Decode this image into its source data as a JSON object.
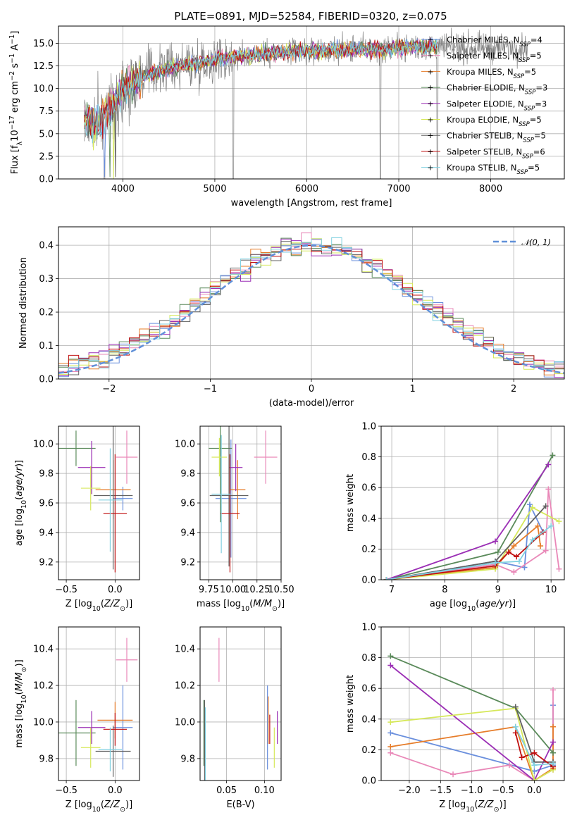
{
  "title": "PLATE=0891, MJD=52584, FIBERID=0320, z=0.075",
  "colors": {
    "chabrier_miles": "#6a8fdd",
    "salpeter_miles": "#e988b8",
    "kroupa_miles": "#e67c29",
    "chabrier_elodie": "#5a8a5a",
    "salpeter_elodie": "#9b2fb5",
    "kroupa_elodie": "#d6e85a",
    "chabrier_stelib": "#606060",
    "salpeter_stelib": "#c01010",
    "kroupa_stelib": "#80d0e0",
    "gaussian": "#6090d8",
    "data": "#808080"
  },
  "legend": {
    "spectrum": [
      "Chabrier MILES, N$SSP=4",
      "Salpeter MILES, N$SSP=5",
      "Kroupa MILES, N$SSP=5",
      "Chabrier ELODIE, N$SSP=3",
      "Salpeter ELODIE, N$SSP=3",
      "Kroupa ELODIE, N$SSP=5",
      "Chabrier STELIB, N$SSP=5",
      "Salpeter STELIB, N$SSP=6",
      "Kroupa STELIB, N$SSP=5"
    ],
    "hist": "𝒩(0, 1)"
  },
  "chart_data": [
    {
      "type": "line",
      "name": "spectrum",
      "xlabel": "wavelength [Angstrom, rest frame]",
      "ylabel": "Flux [f_λ10^−17 erg cm^−2 s^−1 A^−1]",
      "xlim": [
        3300,
        8800
      ],
      "ylim": [
        0,
        16.9
      ],
      "xticks": [
        "4000",
        "5000",
        "6000",
        "7000",
        "8000"
      ],
      "yticks": [
        "0.0",
        "2.5",
        "5.0",
        "7.5",
        "10.0",
        "12.5",
        "15.0"
      ],
      "continuum": {
        "x": [
          3580,
          3700,
          3850,
          4000,
          4200,
          4500,
          4800,
          5000,
          5300,
          5600,
          5900,
          6200,
          6500,
          6800,
          7000,
          7200,
          7400
        ],
        "y": [
          6.5,
          6.0,
          7.5,
          10.0,
          11.2,
          12.3,
          12.8,
          13.2,
          13.6,
          13.9,
          14.1,
          14.2,
          14.3,
          14.4,
          14.5,
          14.6,
          14.7
        ]
      },
      "data_range": [
        3580,
        8400
      ],
      "model_range": [
        3580,
        7420
      ],
      "grid": true
    },
    {
      "type": "bar",
      "name": "residual histogram",
      "xlabel": "(data-model)/error",
      "ylabel": "Normed distribution",
      "xlim": [
        -2.5,
        2.5
      ],
      "ylim": [
        0,
        0.455
      ],
      "xticks": [
        "−2",
        "−1",
        "0",
        "1",
        "2"
      ],
      "yticks": [
        "0.0",
        "0.1",
        "0.2",
        "0.3",
        "0.4"
      ],
      "bin_width": 0.1,
      "gaussian": "N(0,1)",
      "grid": true
    },
    {
      "type": "scatter",
      "name": "age vs Z",
      "xlabel": "Z [log10(Z/Z⊙)]",
      "ylabel": "age  [log10(age/yr)]",
      "xlim": [
        -0.58,
        0.25
      ],
      "ylim": [
        9.08,
        10.12
      ],
      "xticks": [
        "−0.5",
        "0.0"
      ],
      "yticks": [
        "9.2",
        "9.4",
        "9.6",
        "9.8",
        "10.0"
      ],
      "points": [
        {
          "key": "chabrier_miles",
          "x": 0.08,
          "y": 9.63,
          "dx": 0.1,
          "dy": 0.08
        },
        {
          "key": "salpeter_miles",
          "x": 0.12,
          "y": 9.91,
          "dx": 0.11,
          "dy": 0.18
        },
        {
          "key": "kroupa_miles",
          "x": -0.02,
          "y": 9.69,
          "dx": 0.18,
          "dy": 0.2
        },
        {
          "key": "chabrier_elodie",
          "x": -0.4,
          "y": 9.97,
          "dx": 0.2,
          "dy": 0.12
        },
        {
          "key": "salpeter_elodie",
          "x": -0.24,
          "y": 9.84,
          "dx": 0.14,
          "dy": 0.18
        },
        {
          "key": "kroupa_elodie",
          "x": -0.25,
          "y": 9.7,
          "dx": 0.1,
          "dy": 0.15
        },
        {
          "key": "chabrier_stelib",
          "x": -0.02,
          "y": 9.65,
          "dx": 0.2,
          "dy": 0.5
        },
        {
          "key": "salpeter_stelib",
          "x": 0.0,
          "y": 9.53,
          "dx": 0.12,
          "dy": 0.4
        },
        {
          "key": "kroupa_stelib",
          "x": -0.05,
          "y": 9.62,
          "dx": 0.12,
          "dy": 0.35
        }
      ],
      "grid": true
    },
    {
      "type": "scatter",
      "name": "age vs mass",
      "xlabel": "mass [log10(M/M⊙)]",
      "xlim": [
        9.66,
        10.5
      ],
      "ylim": [
        9.08,
        10.12
      ],
      "xticks": [
        "9.75",
        "10.00",
        "10.25",
        "10.50"
      ],
      "yticks": [
        "9.2",
        "9.4",
        "9.6",
        "9.8",
        "10.0"
      ],
      "points": [
        {
          "key": "chabrier_miles",
          "x": 9.98,
          "y": 9.63,
          "dx": 0.16,
          "dy": 0.4
        },
        {
          "key": "salpeter_miles",
          "x": 10.34,
          "y": 9.91,
          "dx": 0.12,
          "dy": 0.18
        },
        {
          "key": "kroupa_miles",
          "x": 10.05,
          "y": 9.69,
          "dx": 0.08,
          "dy": 0.2
        },
        {
          "key": "chabrier_elodie",
          "x": 9.87,
          "y": 9.97,
          "dx": 0.12,
          "dy": 0.5
        },
        {
          "key": "salpeter_elodie",
          "x": 10.03,
          "y": 9.84,
          "dx": 0.07,
          "dy": 0.16
        },
        {
          "key": "kroupa_elodie",
          "x": 9.86,
          "y": 9.91,
          "dx": 0.08,
          "dy": 0.13
        },
        {
          "key": "chabrier_stelib",
          "x": 9.96,
          "y": 9.65,
          "dx": 0.2,
          "dy": 0.48
        },
        {
          "key": "salpeter_stelib",
          "x": 9.97,
          "y": 9.53,
          "dx": 0.1,
          "dy": 0.4
        },
        {
          "key": "kroupa_stelib",
          "x": 9.88,
          "y": 9.66,
          "dx": 0.1,
          "dy": 0.4
        }
      ],
      "grid": true
    },
    {
      "type": "line",
      "name": "mass weight vs age",
      "xlabel": "age  [log10(age/yr)]",
      "ylabel": "mass weight",
      "xlim": [
        6.8,
        10.25
      ],
      "ylim": [
        0,
        1
      ],
      "xticks": [
        "7",
        "8",
        "9",
        "10"
      ],
      "yticks": [
        "0.0",
        "0.2",
        "0.4",
        "0.6",
        "0.8",
        "1.0"
      ],
      "series": [
        {
          "key": "chabrier_miles",
          "x": [
            6.9,
            8.95,
            9.5,
            9.6,
            9.85
          ],
          "y": [
            0.0,
            0.12,
            0.08,
            0.49,
            0.31
          ]
        },
        {
          "key": "salpeter_miles",
          "x": [
            6.9,
            8.95,
            9.3,
            9.9,
            9.95,
            10.15
          ],
          "y": [
            0.0,
            0.1,
            0.05,
            0.19,
            0.59,
            0.07
          ]
        },
        {
          "key": "kroupa_miles",
          "x": [
            6.9,
            8.95,
            9.3,
            9.75,
            9.8
          ],
          "y": [
            0.0,
            0.08,
            0.22,
            0.35,
            0.22
          ]
        },
        {
          "key": "chabrier_elodie",
          "x": [
            6.9,
            9.0,
            10.03
          ],
          "y": [
            0.0,
            0.18,
            0.81
          ]
        },
        {
          "key": "salpeter_elodie",
          "x": [
            6.9,
            8.95,
            9.95
          ],
          "y": [
            0.0,
            0.25,
            0.75
          ]
        },
        {
          "key": "kroupa_elodie",
          "x": [
            6.9,
            8.95,
            9.65,
            10.15
          ],
          "y": [
            0.0,
            0.07,
            0.47,
            0.38
          ]
        },
        {
          "key": "chabrier_stelib",
          "x": [
            6.9,
            8.95,
            9.9
          ],
          "y": [
            0.0,
            0.12,
            0.48
          ]
        },
        {
          "key": "salpeter_stelib",
          "x": [
            6.9,
            8.95,
            9.2,
            9.35,
            9.85
          ],
          "y": [
            0.0,
            0.09,
            0.18,
            0.15,
            0.31
          ]
        },
        {
          "key": "kroupa_stelib",
          "x": [
            6.9,
            8.95,
            9.4,
            9.65,
            10.0
          ],
          "y": [
            0.0,
            0.11,
            0.12,
            0.26,
            0.35
          ]
        }
      ],
      "grid": true
    },
    {
      "type": "scatter",
      "name": "mass vs Z",
      "xlabel": "Z [log10(Z/Z⊙)]",
      "ylabel": "mass [log10(M/M⊙)]",
      "xlim": [
        -0.58,
        0.25
      ],
      "ylim": [
        9.68,
        10.52
      ],
      "xticks": [
        "−0.5",
        "0.0"
      ],
      "yticks": [
        "9.8",
        "10.0",
        "10.2",
        "10.4"
      ],
      "points": [
        {
          "key": "chabrier_miles",
          "x": 0.08,
          "y": 9.97,
          "dx": 0.1,
          "dy": 0.23
        },
        {
          "key": "salpeter_miles",
          "x": 0.12,
          "y": 10.34,
          "dx": 0.11,
          "dy": 0.12
        },
        {
          "key": "kroupa_miles",
          "x": 0.0,
          "y": 10.01,
          "dx": 0.18,
          "dy": 0.1
        },
        {
          "key": "chabrier_elodie",
          "x": -0.4,
          "y": 9.94,
          "dx": 0.2,
          "dy": 0.18
        },
        {
          "key": "salpeter_elodie",
          "x": -0.24,
          "y": 9.97,
          "dx": 0.14,
          "dy": 0.09
        },
        {
          "key": "kroupa_elodie",
          "x": -0.25,
          "y": 9.86,
          "dx": 0.1,
          "dy": 0.11
        },
        {
          "key": "chabrier_stelib",
          "x": -0.02,
          "y": 9.84,
          "dx": 0.18,
          "dy": 0.14
        },
        {
          "key": "salpeter_stelib",
          "x": 0.0,
          "y": 9.96,
          "dx": 0.12,
          "dy": 0.09
        },
        {
          "key": "kroupa_stelib",
          "x": -0.05,
          "y": 9.85,
          "dx": 0.12,
          "dy": 0.12
        }
      ],
      "grid": true
    },
    {
      "type": "scatter",
      "name": "mass vs E(B-V)",
      "xlabel": "E(B-V)",
      "xlim": [
        0.015,
        0.122
      ],
      "ylim": [
        9.68,
        10.52
      ],
      "xticks": [
        "0.05",
        "0.10"
      ],
      "yticks": [
        "9.8",
        "10.0",
        "10.2",
        "10.4"
      ],
      "points": [
        {
          "key": "chabrier_miles",
          "x": 0.104,
          "y": 9.97,
          "dy": 0.23
        },
        {
          "key": "salpeter_miles",
          "x": 0.04,
          "y": 10.34,
          "dy": 0.12
        },
        {
          "key": "kroupa_miles",
          "x": 0.105,
          "y": 10.01,
          "dy": 0.13
        },
        {
          "key": "chabrier_elodie",
          "x": 0.02,
          "y": 9.94,
          "dy": 0.18
        },
        {
          "key": "salpeter_elodie",
          "x": 0.117,
          "y": 9.97,
          "dy": 0.09
        },
        {
          "key": "kroupa_elodie",
          "x": 0.113,
          "y": 9.86,
          "dy": 0.11
        },
        {
          "key": "chabrier_stelib",
          "x": 0.021,
          "y": 9.9,
          "dy": 0.22
        },
        {
          "key": "salpeter_stelib",
          "x": 0.107,
          "y": 9.96,
          "dy": 0.08
        },
        {
          "key": "kroupa_stelib",
          "x": 0.022,
          "y": 9.88,
          "dy": 0.2
        }
      ],
      "grid": true
    },
    {
      "type": "line",
      "name": "mass weight vs Z",
      "xlabel": "Z [log10(Z/Z⊙)]",
      "ylabel": "mass weight",
      "xlim": [
        -2.45,
        0.48
      ],
      "ylim": [
        0,
        1
      ],
      "xticks": [
        "−2.0",
        "−1.5",
        "−1.0",
        "−0.5",
        "0.0"
      ],
      "yticks": [
        "0.0",
        "0.2",
        "0.4",
        "0.6",
        "0.8",
        "1.0"
      ],
      "series": [
        {
          "key": "chabrier_miles",
          "x": [
            -2.3,
            0.0,
            0.3,
            0.3
          ],
          "y": [
            0.31,
            0.06,
            0.1,
            0.49
          ]
        },
        {
          "key": "salpeter_miles",
          "x": [
            -2.3,
            -1.3,
            -0.4,
            0.0,
            0.3,
            0.3
          ],
          "y": [
            0.18,
            0.04,
            0.1,
            0.0,
            0.07,
            0.59
          ]
        },
        {
          "key": "kroupa_miles",
          "x": [
            -2.3,
            -0.3,
            0.0,
            0.3,
            0.3
          ],
          "y": [
            0.22,
            0.35,
            0.0,
            0.08,
            0.35
          ]
        },
        {
          "key": "chabrier_elodie",
          "x": [
            -2.3,
            -0.3,
            0.3
          ],
          "y": [
            0.81,
            0.47,
            0.18
          ]
        },
        {
          "key": "salpeter_elodie",
          "x": [
            -2.3,
            0.0,
            0.3
          ],
          "y": [
            0.75,
            0.0,
            0.25
          ]
        },
        {
          "key": "kroupa_elodie",
          "x": [
            -2.3,
            -0.3,
            0.0,
            0.3
          ],
          "y": [
            0.38,
            0.47,
            0.0,
            0.07
          ]
        },
        {
          "key": "chabrier_stelib",
          "x": [
            -0.3,
            0.0,
            0.3
          ],
          "y": [
            0.48,
            0.12,
            0.12
          ]
        },
        {
          "key": "salpeter_stelib",
          "x": [
            -0.3,
            -0.2,
            0.0,
            0.3
          ],
          "y": [
            0.31,
            0.15,
            0.18,
            0.09
          ]
        },
        {
          "key": "kroupa_stelib",
          "x": [
            -0.3,
            0.0,
            0.3
          ],
          "y": [
            0.35,
            0.1,
            0.11
          ]
        }
      ],
      "grid": true
    }
  ]
}
